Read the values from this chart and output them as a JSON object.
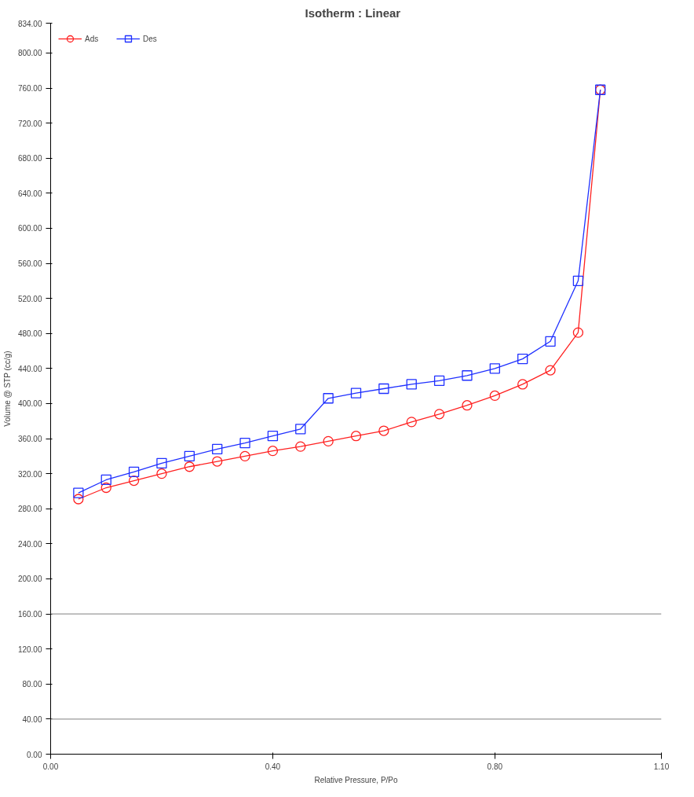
{
  "chart_data": {
    "type": "line",
    "title": "Isotherm :   Linear",
    "xlabel": "Relative Pressure, P/Po",
    "ylabel": "Volume @ STP (cc/g)",
    "xlim": [
      0,
      1.1
    ],
    "ylim": [
      0,
      834
    ],
    "xticks": [
      {
        "value": 0,
        "label": "0.00"
      },
      {
        "value": 0.4,
        "label": "0.40"
      },
      {
        "value": 0.8,
        "label": "0.80"
      },
      {
        "value": 1.1,
        "label": "1.10"
      }
    ],
    "yticks": [
      {
        "value": 0,
        "label": "0.00"
      },
      {
        "value": 40,
        "label": "40.00"
      },
      {
        "value": 80,
        "label": "80.00"
      },
      {
        "value": 120,
        "label": "120.00"
      },
      {
        "value": 160,
        "label": "160.00"
      },
      {
        "value": 200,
        "label": "200.00"
      },
      {
        "value": 240,
        "label": "240.00"
      },
      {
        "value": 280,
        "label": "280.00"
      },
      {
        "value": 320,
        "label": "320.00"
      },
      {
        "value": 360,
        "label": "360.00"
      },
      {
        "value": 400,
        "label": "400.00"
      },
      {
        "value": 440,
        "label": "440.00"
      },
      {
        "value": 480,
        "label": "480.00"
      },
      {
        "value": 520,
        "label": "520.00"
      },
      {
        "value": 560,
        "label": "560.00"
      },
      {
        "value": 600,
        "label": "600.00"
      },
      {
        "value": 640,
        "label": "640.00"
      },
      {
        "value": 680,
        "label": "680.00"
      },
      {
        "value": 720,
        "label": "720.00"
      },
      {
        "value": 760,
        "label": "760.00"
      },
      {
        "value": 800,
        "label": "800.00"
      },
      {
        "value": 834,
        "label": "834.00"
      }
    ],
    "x": [
      0.05,
      0.1,
      0.15,
      0.2,
      0.25,
      0.3,
      0.35,
      0.4,
      0.45,
      0.5,
      0.55,
      0.6,
      0.65,
      0.7,
      0.75,
      0.8,
      0.85,
      0.9,
      0.95,
      0.99
    ],
    "series": [
      {
        "name": "Ads",
        "color": "#ff2020",
        "marker": "circle",
        "values": [
          291,
          304,
          312,
          320,
          328,
          334,
          340,
          346,
          351,
          357,
          363,
          369,
          379,
          388,
          398,
          409,
          422,
          438,
          481,
          758
        ]
      },
      {
        "name": "Des",
        "color": "#1f30ff",
        "marker": "square",
        "values": [
          298,
          313,
          322,
          332,
          340,
          348,
          355,
          363,
          371,
          406,
          412,
          417,
          422,
          426,
          432,
          440,
          451,
          471,
          540,
          758
        ]
      }
    ],
    "ref_lines": [
      {
        "axis": "y",
        "value": 160,
        "color": "#808080"
      },
      {
        "axis": "y",
        "value": 40,
        "color": "#808080"
      }
    ],
    "grid": false,
    "legend": "top left",
    "line_style": "solid"
  }
}
